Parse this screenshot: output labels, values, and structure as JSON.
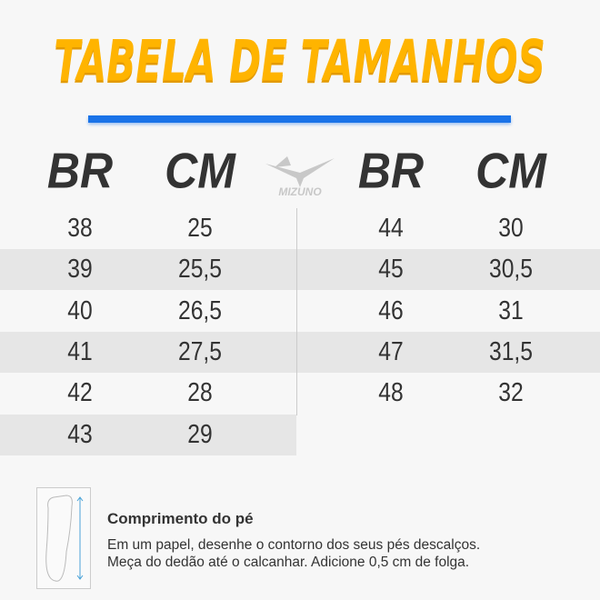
{
  "title": "TABELA DE TAMANHOS",
  "accent_color": "#ffb400",
  "bar_color": "#1a73e8",
  "logo": "MIZUNO",
  "headers": {
    "br": "BR",
    "cm": "CM"
  },
  "left": [
    [
      "38",
      "25"
    ],
    [
      "39",
      "25,5"
    ],
    [
      "40",
      "26,5"
    ],
    [
      "41",
      "27,5"
    ],
    [
      "42",
      "28"
    ],
    [
      "43",
      "29"
    ]
  ],
  "right": [
    [
      "44",
      "30"
    ],
    [
      "45",
      "30,5"
    ],
    [
      "46",
      "31"
    ],
    [
      "47",
      "31,5"
    ],
    [
      "48",
      "32"
    ]
  ],
  "note": {
    "icon": "foot-measure-icon",
    "title": "Comprimento do pé",
    "line1": "Em um papel, desenhe o contorno dos seus pés descalços.",
    "line2": "Meça do dedão até o calcanhar. Adicione 0,5 cm de folga."
  }
}
